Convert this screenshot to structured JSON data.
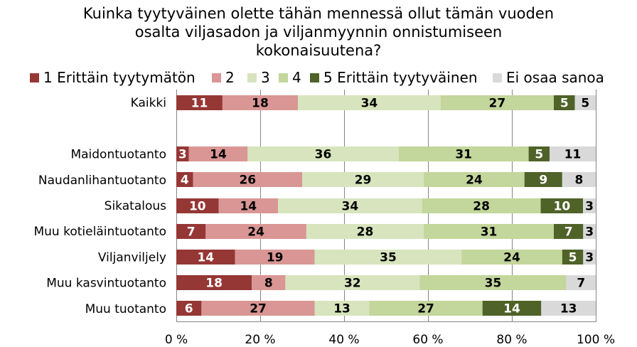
{
  "chart_data": {
    "type": "bar",
    "orientation": "horizontal",
    "stacked": true,
    "percent_stacked": true,
    "title_lines": [
      "Kuinka tyytyväinen olette tähän mennessä ollut tämän vuoden",
      "osalta viljasadon ja viljanmyynnin onnistumiseen",
      "kokonaisuutena?"
    ],
    "categories": [
      "Kaikki",
      "",
      "Maidontuotanto",
      "Naudanlihantuotanto",
      "Sikatalous",
      "Muu kotieläintuotanto",
      "Viljanviljely",
      "Muu kasvintuotanto",
      "Muu tuotanto"
    ],
    "series": [
      {
        "name": "1 Erittäin tyytymätön",
        "color": "#953735",
        "label_color": "#ffffff",
        "values": [
          11,
          null,
          3,
          4,
          10,
          7,
          14,
          18,
          6
        ]
      },
      {
        "name": "2",
        "color": "#d99694",
        "label_color": "#000000",
        "values": [
          18,
          null,
          14,
          26,
          14,
          24,
          19,
          8,
          27
        ]
      },
      {
        "name": "3",
        "color": "#d7e4bd",
        "label_color": "#000000",
        "values": [
          34,
          null,
          36,
          29,
          34,
          28,
          35,
          32,
          13
        ]
      },
      {
        "name": "4",
        "color": "#c3d69b",
        "label_color": "#000000",
        "values": [
          27,
          null,
          31,
          24,
          28,
          31,
          24,
          35,
          27
        ]
      },
      {
        "name": "5 Erittäin tyytyväinen",
        "color": "#4f6228",
        "label_color": "#ffffff",
        "values": [
          5,
          null,
          5,
          9,
          10,
          7,
          5,
          null,
          14
        ]
      },
      {
        "name": "Ei osaa sanoa",
        "color": "#d9d9d9",
        "label_color": "#000000",
        "values": [
          5,
          null,
          11,
          8,
          3,
          3,
          3,
          7,
          13
        ]
      }
    ],
    "xaxis": {
      "ticks": [
        0,
        20,
        40,
        60,
        80,
        100
      ],
      "tick_labels": [
        "0 %",
        "20 %",
        "40 %",
        "60 %",
        "80 %",
        "100 %"
      ],
      "range": [
        0,
        100
      ]
    },
    "grid": true,
    "legend_position": "top"
  }
}
